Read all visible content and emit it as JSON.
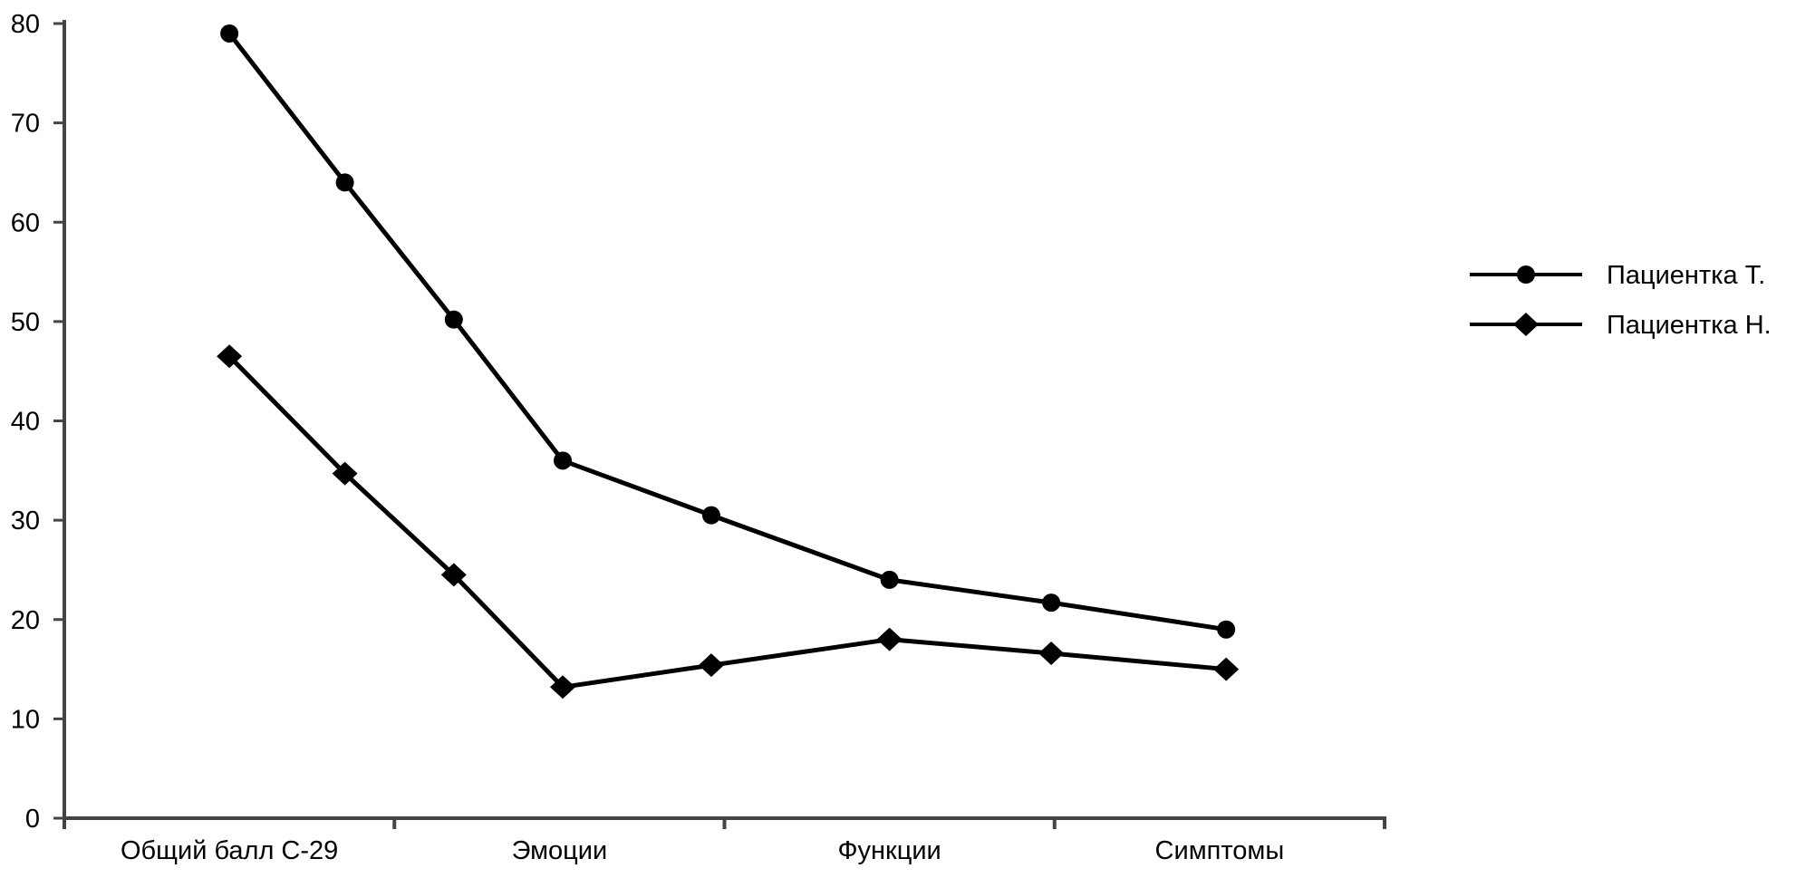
{
  "chart_data": {
    "type": "line",
    "title": "",
    "xlabel": "",
    "ylabel": "",
    "ylim": [
      0,
      80
    ],
    "yticks": [
      0,
      10,
      20,
      30,
      40,
      50,
      60,
      70,
      80
    ],
    "categories": [
      "Общий балл С-29",
      "Эмоции",
      "Функции",
      "Симптомы"
    ],
    "xlim": [
      0,
      4
    ],
    "x": [
      0.5,
      0.85,
      1.18,
      1.51,
      1.96,
      2.5,
      2.99,
      3.52
    ],
    "grid": false,
    "legend_position": "right",
    "series": [
      {
        "name": "Пациентка Т.",
        "marker": "circle",
        "color": "#000000",
        "values": [
          79,
          64,
          50.2,
          36,
          30.5,
          24,
          21.7,
          19
        ]
      },
      {
        "name": "Пациентка Н.",
        "marker": "diamond",
        "color": "#000000",
        "values": [
          46.5,
          34.7,
          24.5,
          13.2,
          15.4,
          18,
          16.6,
          15
        ]
      }
    ]
  }
}
